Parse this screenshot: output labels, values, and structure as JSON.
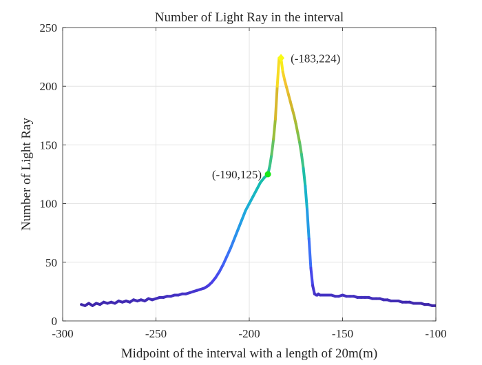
{
  "chart_data": {
    "type": "line",
    "title": "Number of Light Ray in the interval",
    "xlabel": "Midpoint of the interval with a length of 20m(m)",
    "ylabel": "Number of Light Ray",
    "xlim": [
      -300,
      -100
    ],
    "ylim": [
      0,
      250
    ],
    "xticks": [
      -300,
      -250,
      -200,
      -150,
      -100
    ],
    "yticks": [
      0,
      50,
      100,
      150,
      200,
      250
    ],
    "xtick_labels": [
      "-300",
      "-250",
      "-200",
      "-150",
      "-100"
    ],
    "ytick_labels": [
      "0",
      "50",
      "100",
      "150",
      "200",
      "250"
    ],
    "grid": true,
    "colormap": [
      "#3e26a8",
      "#4a40e8",
      "#3f6cf8",
      "#2795eb",
      "#1cadd8",
      "#14bdb0",
      "#44c47e",
      "#92bf3d",
      "#d1b52c",
      "#f5c430",
      "#f9fb15"
    ],
    "series": [
      {
        "x": [
          -290,
          -288,
          -286,
          -284,
          -282,
          -280,
          -278,
          -276,
          -274,
          -272,
          -270,
          -268,
          -266,
          -264,
          -262,
          -260,
          -258,
          -256,
          -254,
          -252,
          -250,
          -248,
          -246,
          -244,
          -242,
          -240,
          -238,
          -236,
          -234,
          -232,
          -230,
          -228,
          -226,
          -224,
          -222,
          -220,
          -218,
          -216,
          -214,
          -212,
          -210,
          -208,
          -206,
          -204,
          -202,
          -200,
          -198,
          -196,
          -194,
          -192,
          -190,
          -189,
          -188,
          -187,
          -186,
          -185,
          -184,
          -183,
          -182,
          -181,
          -180,
          -179,
          -178,
          -177,
          -176,
          -175,
          -174,
          -173,
          -172,
          -171,
          -170,
          -169,
          -168,
          -167,
          -166,
          -165,
          -164,
          -163.5,
          -163,
          -162,
          -160,
          -158,
          -156,
          -154,
          -152,
          -150,
          -148,
          -146,
          -144,
          -142,
          -140,
          -138,
          -136,
          -134,
          -132,
          -130,
          -128,
          -126,
          -124,
          -122,
          -120,
          -118,
          -116,
          -114,
          -112,
          -110,
          -108,
          -106,
          -104,
          -102,
          -100
        ],
        "y": [
          14,
          13,
          15,
          13,
          15,
          14,
          16,
          15,
          16,
          15,
          17,
          16,
          17,
          16,
          18,
          17,
          18,
          17,
          19,
          18,
          19,
          20,
          20,
          21,
          21,
          22,
          22,
          23,
          23,
          24,
          25,
          26,
          27,
          28,
          30,
          33,
          37,
          42,
          48,
          55,
          62,
          70,
          78,
          86,
          94,
          100,
          106,
          112,
          118,
          122,
          125,
          132,
          142,
          155,
          172,
          200,
          224,
          224,
          212,
          205,
          199,
          193,
          187,
          181,
          175,
          168,
          160,
          152,
          142,
          130,
          115,
          95,
          70,
          45,
          30,
          23,
          22,
          22,
          23,
          22,
          22,
          22,
          22,
          21,
          21,
          22,
          21,
          21,
          21,
          20,
          20,
          20,
          20,
          19,
          19,
          19,
          18,
          18,
          17,
          17,
          17,
          16,
          16,
          16,
          15,
          15,
          15,
          14,
          14,
          13,
          13
        ]
      }
    ],
    "annotations": [
      {
        "x": -190,
        "y": 125,
        "label": "(-190,125)",
        "marker_color": "#18e718",
        "label_side": "left"
      },
      {
        "x": -183,
        "y": 224,
        "label": "(-183,224)",
        "marker_color": "#f9fb15",
        "label_side": "right"
      }
    ]
  }
}
